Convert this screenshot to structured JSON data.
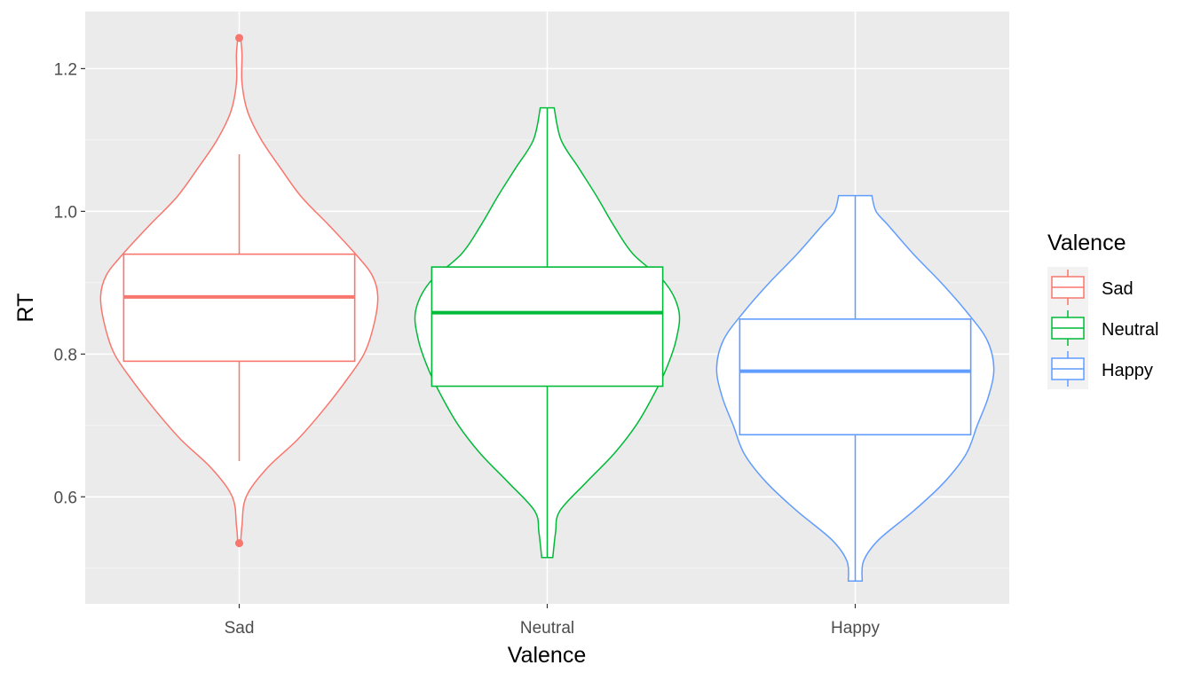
{
  "chart_data": {
    "type": "violin",
    "xlabel": "Valence",
    "ylabel": "RT",
    "ylim": [
      0.45,
      1.28
    ],
    "y_ticks": [
      "0.6",
      "0.8",
      "1.0",
      "1.2"
    ],
    "grid": true,
    "legend_position": "right",
    "legend_title": "Valence",
    "categories": [
      "Sad",
      "Neutral",
      "Happy"
    ],
    "series": [
      {
        "name": "Sad",
        "color": "#F8766D",
        "min": 0.535,
        "max": 1.243,
        "whisker_low": 0.65,
        "whisker_high": 1.08,
        "q1": 0.79,
        "median": 0.88,
        "q3": 0.94,
        "outliers": [
          0.535,
          1.243
        ],
        "density": [
          [
            0.535,
            0.01
          ],
          [
            0.56,
            0.02
          ],
          [
            0.6,
            0.05
          ],
          [
            0.64,
            0.2
          ],
          [
            0.68,
            0.42
          ],
          [
            0.72,
            0.6
          ],
          [
            0.76,
            0.76
          ],
          [
            0.8,
            0.9
          ],
          [
            0.84,
            0.97
          ],
          [
            0.88,
            1.0
          ],
          [
            0.91,
            0.96
          ],
          [
            0.94,
            0.84
          ],
          [
            0.98,
            0.65
          ],
          [
            1.02,
            0.45
          ],
          [
            1.06,
            0.3
          ],
          [
            1.1,
            0.16
          ],
          [
            1.14,
            0.06
          ],
          [
            1.18,
            0.02
          ],
          [
            1.22,
            0.02
          ],
          [
            1.243,
            0.01
          ]
        ]
      },
      {
        "name": "Neutral",
        "color": "#00BA38",
        "min": 0.515,
        "max": 1.145,
        "whisker_low": 0.515,
        "whisker_high": 1.145,
        "q1": 0.755,
        "median": 0.858,
        "q3": 0.922,
        "outliers": [],
        "density": [
          [
            0.515,
            0.04
          ],
          [
            0.55,
            0.06
          ],
          [
            0.58,
            0.09
          ],
          [
            0.62,
            0.28
          ],
          [
            0.66,
            0.48
          ],
          [
            0.7,
            0.64
          ],
          [
            0.74,
            0.76
          ],
          [
            0.78,
            0.86
          ],
          [
            0.82,
            0.93
          ],
          [
            0.86,
            0.95
          ],
          [
            0.9,
            0.85
          ],
          [
            0.94,
            0.62
          ],
          [
            0.98,
            0.48
          ],
          [
            1.02,
            0.36
          ],
          [
            1.06,
            0.23
          ],
          [
            1.1,
            0.1
          ],
          [
            1.145,
            0.05
          ]
        ]
      },
      {
        "name": "Happy",
        "color": "#619CFF",
        "min": 0.482,
        "max": 1.022,
        "whisker_low": 0.482,
        "whisker_high": 1.022,
        "q1": 0.687,
        "median": 0.776,
        "q3": 0.849,
        "outliers": [],
        "density": [
          [
            0.482,
            0.05
          ],
          [
            0.51,
            0.06
          ],
          [
            0.54,
            0.17
          ],
          [
            0.58,
            0.42
          ],
          [
            0.62,
            0.64
          ],
          [
            0.66,
            0.8
          ],
          [
            0.7,
            0.88
          ],
          [
            0.74,
            0.96
          ],
          [
            0.78,
            1.0
          ],
          [
            0.82,
            0.95
          ],
          [
            0.86,
            0.8
          ],
          [
            0.9,
            0.62
          ],
          [
            0.94,
            0.42
          ],
          [
            0.98,
            0.24
          ],
          [
            1.0,
            0.15
          ],
          [
            1.022,
            0.12
          ]
        ]
      }
    ]
  }
}
